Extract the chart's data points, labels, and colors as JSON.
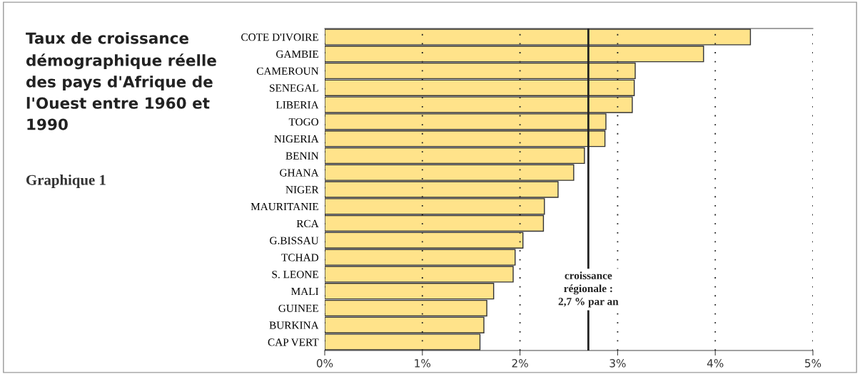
{
  "chart_data": {
    "type": "bar",
    "orientation": "horizontal",
    "title": "Taux de croissance démographique réelle des pays d'Afrique de l'Ouest entre 1960 et 1990",
    "subtitle": "Graphique 1",
    "categories": [
      "COTE D'IVOIRE",
      "GAMBIE",
      "CAMEROUN",
      "SENEGAL",
      "LIBERIA",
      "TOGO",
      "NIGERIA",
      "BENIN",
      "GHANA",
      "NIGER",
      "MAURITANIE",
      "RCA",
      "G.BISSAU",
      "TCHAD",
      "S. LEONE",
      "MALI",
      "GUINEE",
      "BURKINA",
      "CAP VERT"
    ],
    "values": [
      4.36,
      3.88,
      3.18,
      3.17,
      3.15,
      2.88,
      2.87,
      2.66,
      2.55,
      2.39,
      2.25,
      2.24,
      2.03,
      1.95,
      1.93,
      1.73,
      1.66,
      1.63,
      1.59
    ],
    "color": "#ffe38a",
    "xlim": [
      0,
      5
    ],
    "xticks": [
      {
        "value": 0,
        "label": "0%"
      },
      {
        "value": 1,
        "label": "1%"
      },
      {
        "value": 2,
        "label": "2%"
      },
      {
        "value": 3,
        "label": "3%"
      },
      {
        "value": 4,
        "label": "4%"
      },
      {
        "value": 5,
        "label": "5%"
      }
    ],
    "grid": "x",
    "ref_lines": [
      {
        "axis": "x",
        "value": 2.7,
        "label": "croissance\nrégionale :\n2,7 % par an",
        "color": "#222222",
        "line_style": "solid"
      }
    ]
  }
}
